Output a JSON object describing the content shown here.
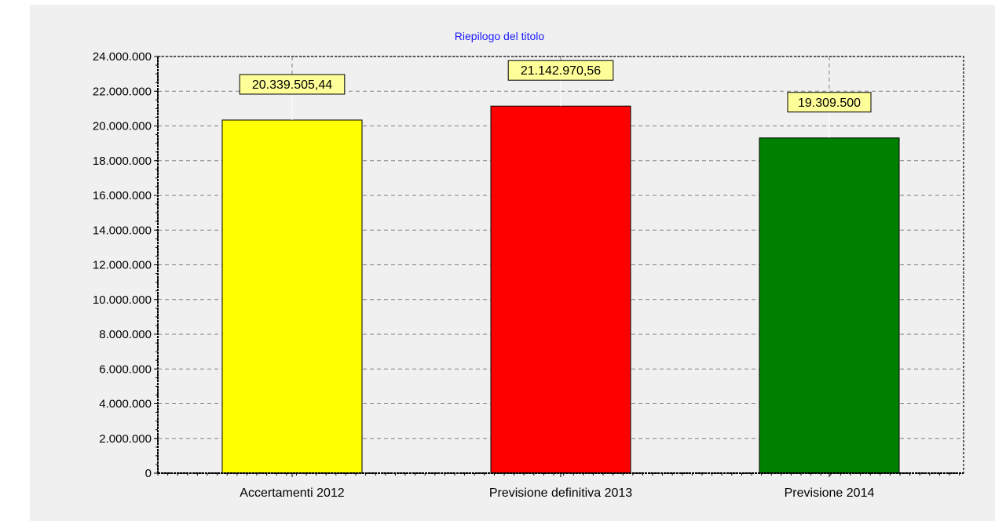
{
  "chart_data": {
    "type": "bar",
    "title": "Riepilogo del titolo",
    "categories": [
      "Accertamenti 2012",
      "Previsione definitiva 2013",
      "Previsione 2014"
    ],
    "values": [
      20339505.44,
      21142970.56,
      19309500
    ],
    "data_labels": [
      "20.339.505,44",
      "21.142.970,56",
      "19.309.500"
    ],
    "bar_colors": [
      "#ffff00",
      "#ff0000",
      "#008000"
    ],
    "ylim": [
      0,
      24000000
    ],
    "yticks": [
      0,
      2000000,
      4000000,
      6000000,
      8000000,
      10000000,
      12000000,
      14000000,
      16000000,
      18000000,
      20000000,
      22000000,
      24000000
    ],
    "ytick_labels": [
      "0",
      "2.000.000",
      "4.000.000",
      "6.000.000",
      "8.000.000",
      "10.000.000",
      "12.000.000",
      "14.000.000",
      "16.000.000",
      "18.000.000",
      "20.000.000",
      "22.000.000",
      "24.000.000"
    ],
    "xlabel": "",
    "ylabel": "",
    "grid": true,
    "legend": false,
    "colors": {
      "background": "#f0f0f0",
      "title": "#1a1aff",
      "data_label_bg": "#ffff99",
      "grid": "#808080"
    }
  }
}
